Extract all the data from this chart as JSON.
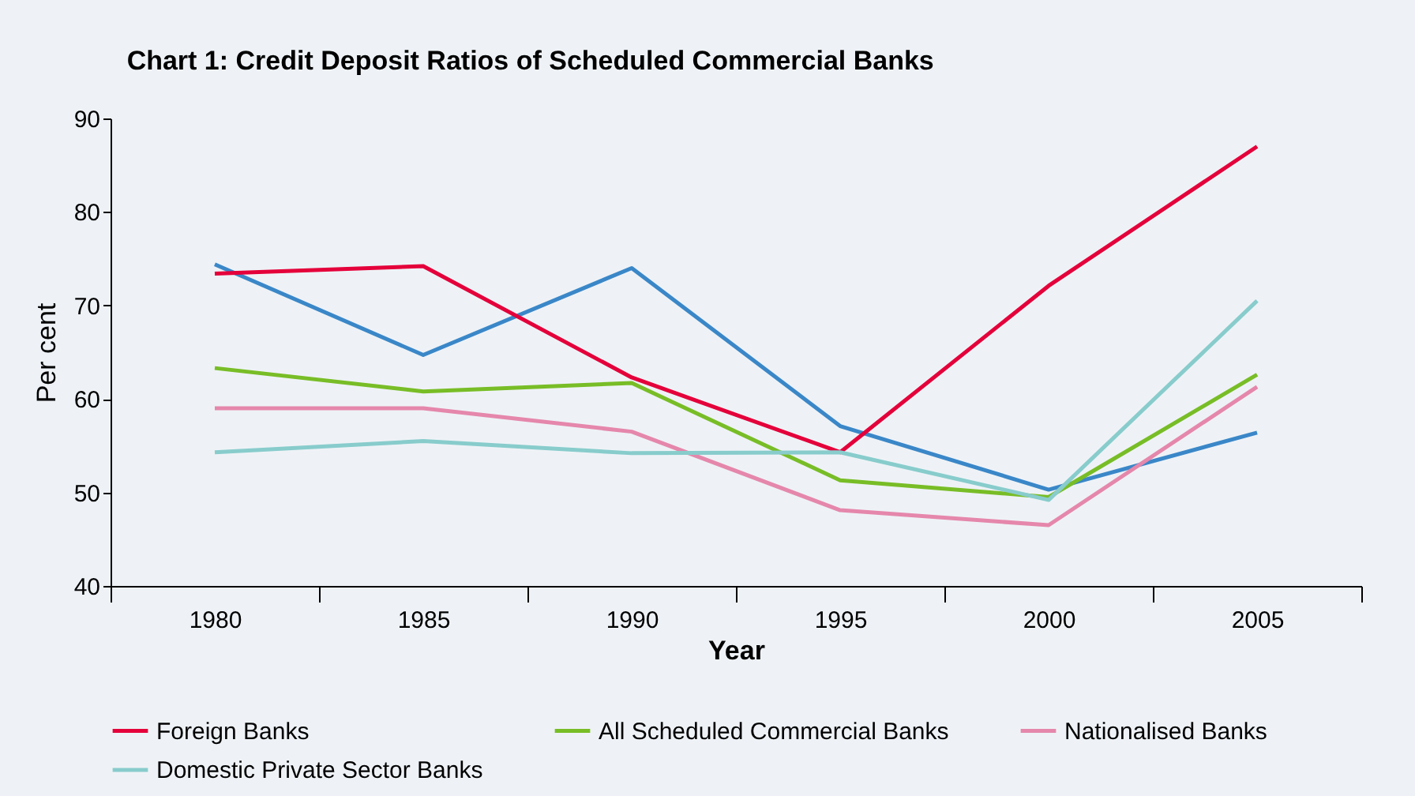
{
  "chart_data": {
    "type": "line",
    "title": "Chart 1: Credit Deposit Ratios of Scheduled Commercial Banks",
    "xlabel": "Year",
    "ylabel": "Per cent",
    "categories": [
      "1980",
      "1985",
      "1990",
      "1995",
      "2000",
      "2005"
    ],
    "series": [
      {
        "color": "#3a87c8",
        "values": [
          74.4,
          64.7,
          74.0,
          57.1,
          50.3,
          56.4
        ]
      },
      {
        "name": "Foreign Banks",
        "color": "#e4003a",
        "values": [
          73.4,
          74.2,
          62.3,
          54.3,
          72.1,
          87.0
        ]
      },
      {
        "name": "All Scheduled Commercial Banks",
        "color": "#78bd26",
        "values": [
          63.3,
          60.8,
          61.7,
          51.3,
          49.5,
          62.6
        ]
      },
      {
        "name": "Nationalised Banks",
        "color": "#e587ab",
        "values": [
          59.0,
          59.0,
          56.5,
          48.1,
          46.5,
          61.3
        ]
      },
      {
        "name": "Domestic Private Sector Banks",
        "color": "#88cccc",
        "values": [
          54.3,
          55.5,
          54.2,
          54.3,
          49.2,
          70.5
        ]
      }
    ],
    "ylim": [
      40,
      90
    ],
    "yticks": [
      40,
      50,
      60,
      70,
      80,
      90
    ],
    "grid": false,
    "legend": "bottom",
    "marker": "none",
    "line_style": "solid"
  }
}
